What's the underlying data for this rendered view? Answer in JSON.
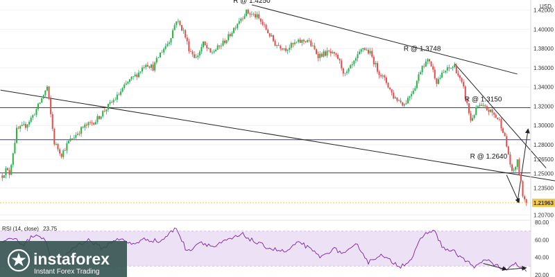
{
  "chart_data": {
    "type": "candlestick",
    "currency_label": "USD",
    "colors": {
      "up": "#26a69a",
      "up_fill": "#2fb53e",
      "down": "#e0524f",
      "resistance_line": "#2b3990",
      "trendline": "#222222",
      "rsi_line": "#7b1fa2",
      "rsi_band": "#ede1f5",
      "last_price_bg": "#f2c94c"
    },
    "price_axis": {
      "min": 1.2015,
      "max": 1.4305,
      "ticks": [
        {
          "value": 1.42,
          "label": "1.42000"
        },
        {
          "value": 1.4,
          "label": "1.40000"
        },
        {
          "value": 1.38,
          "label": "1.38000"
        },
        {
          "value": 1.36,
          "label": "1.36000"
        },
        {
          "value": 1.34,
          "label": "1.34000"
        },
        {
          "value": 1.32,
          "label": "1.32000"
        },
        {
          "value": 1.3,
          "label": "1.30000"
        },
        {
          "value": 1.28,
          "label": "1.28000"
        },
        {
          "value": 1.265,
          "label": "1.26500"
        },
        {
          "value": 1.25,
          "label": "1.25000"
        },
        {
          "value": 1.235,
          "label": "1.23500"
        },
        {
          "value": 1.207,
          "label": "1.20700"
        }
      ],
      "last_price": {
        "value": 1.21963,
        "label": "1.21963"
      }
    },
    "horizontal_levels": [
      1.3185,
      1.2852,
      1.2507
    ],
    "annotations": [
      {
        "text": "R @ 1.4250",
        "bar": 139,
        "price": 1.4275
      },
      {
        "text": "R @ 1.3748",
        "bar": 234,
        "price": 1.3775
      },
      {
        "text": "R @ 1.3150",
        "bar": 268,
        "price": 1.325
      },
      {
        "text": "R @ 1.2640",
        "bar": 271,
        "price": 1.2655
      }
    ],
    "trendlines": [
      {
        "from": {
          "bar": -1,
          "price": 1.3368
        },
        "to": {
          "bar": 320,
          "price": 1.2388
        }
      },
      {
        "from": {
          "bar": 139,
          "price": 1.4255
        },
        "to": {
          "bar": 287,
          "price": 1.3535
        }
      },
      {
        "from": {
          "bar": 252,
          "price": 1.3643
        },
        "to": {
          "bar": 303,
          "price": 1.2558
        }
      },
      {
        "from": {
          "bar": 281,
          "price": 1.2485
        },
        "to": {
          "bar": 288,
          "price": 1.2195
        },
        "arrow": true
      },
      {
        "from": {
          "bar": 287,
          "price": 1.2195
        },
        "to": {
          "bar": 293,
          "price": 1.2965
        },
        "arrow": true
      }
    ],
    "price_waypoints": [
      [
        0,
        1.248
      ],
      [
        2,
        1.254
      ],
      [
        4,
        1.25
      ],
      [
        8,
        1.295
      ],
      [
        13,
        1.3
      ],
      [
        17,
        1.31
      ],
      [
        20,
        1.32
      ],
      [
        25,
        1.34
      ],
      [
        29,
        1.282
      ],
      [
        33,
        1.27
      ],
      [
        37,
        1.283
      ],
      [
        45,
        1.298
      ],
      [
        52,
        1.305
      ],
      [
        58,
        1.318
      ],
      [
        64,
        1.33
      ],
      [
        70,
        1.345
      ],
      [
        76,
        1.355
      ],
      [
        80,
        1.365
      ],
      [
        84,
        1.36
      ],
      [
        88,
        1.375
      ],
      [
        93,
        1.388
      ],
      [
        97,
        1.41
      ],
      [
        101,
        1.398
      ],
      [
        104,
        1.38
      ],
      [
        108,
        1.37
      ],
      [
        112,
        1.385
      ],
      [
        116,
        1.375
      ],
      [
        121,
        1.382
      ],
      [
        126,
        1.392
      ],
      [
        132,
        1.41
      ],
      [
        136,
        1.418
      ],
      [
        142,
        1.413
      ],
      [
        147,
        1.4
      ],
      [
        152,
        1.385
      ],
      [
        158,
        1.38
      ],
      [
        164,
        1.386
      ],
      [
        170,
        1.389
      ],
      [
        176,
        1.373
      ],
      [
        182,
        1.376
      ],
      [
        187,
        1.37
      ],
      [
        191,
        1.352
      ],
      [
        196,
        1.365
      ],
      [
        201,
        1.381
      ],
      [
        205,
        1.375
      ],
      [
        209,
        1.358
      ],
      [
        214,
        1.345
      ],
      [
        218,
        1.33
      ],
      [
        224,
        1.322
      ],
      [
        230,
        1.341
      ],
      [
        234,
        1.363
      ],
      [
        238,
        1.368
      ],
      [
        242,
        1.346
      ],
      [
        247,
        1.357
      ],
      [
        252,
        1.362
      ],
      [
        257,
        1.338
      ],
      [
        261,
        1.305
      ],
      [
        265,
        1.32
      ],
      [
        269,
        1.318
      ],
      [
        273,
        1.313
      ],
      [
        277,
        1.305
      ],
      [
        279,
        1.295
      ],
      [
        282,
        1.27
      ],
      [
        284,
        1.25
      ],
      [
        287,
        1.262
      ],
      [
        290,
        1.228
      ],
      [
        292,
        1.21963
      ]
    ],
    "rsi": {
      "label": "RSI (14, close)",
      "value": 23.75,
      "axis_min": 17.5,
      "axis_max": 82.5,
      "ticks": [
        {
          "value": 80,
          "label": "80.00"
        },
        {
          "value": 60,
          "label": "60.00"
        },
        {
          "value": 40,
          "label": "40.00"
        },
        {
          "value": 20,
          "label": "20.00"
        }
      ],
      "band": [
        30,
        70
      ],
      "arrows": [
        {
          "from": {
            "bar": 268,
            "value": 33
          },
          "to": {
            "bar": 281,
            "value": 26
          }
        },
        {
          "from": {
            "bar": 281,
            "value": 26
          },
          "to": {
            "bar": 292,
            "value": 28
          }
        }
      ],
      "waypoints": [
        [
          0,
          57
        ],
        [
          6,
          62
        ],
        [
          12,
          55
        ],
        [
          18,
          66
        ],
        [
          23,
          63
        ],
        [
          28,
          36
        ],
        [
          33,
          38
        ],
        [
          40,
          52
        ],
        [
          48,
          60
        ],
        [
          56,
          50
        ],
        [
          64,
          62
        ],
        [
          72,
          55
        ],
        [
          80,
          61
        ],
        [
          88,
          58
        ],
        [
          97,
          74
        ],
        [
          103,
          46
        ],
        [
          110,
          58
        ],
        [
          118,
          52
        ],
        [
          126,
          60
        ],
        [
          134,
          66
        ],
        [
          142,
          56
        ],
        [
          150,
          50
        ],
        [
          158,
          46
        ],
        [
          166,
          58
        ],
        [
          172,
          48
        ],
        [
          178,
          40
        ],
        [
          184,
          50
        ],
        [
          191,
          44
        ],
        [
          198,
          55
        ],
        [
          204,
          34
        ],
        [
          210,
          43
        ],
        [
          216,
          36
        ],
        [
          222,
          30
        ],
        [
          228,
          38
        ],
        [
          234,
          64
        ],
        [
          240,
          72
        ],
        [
          246,
          50
        ],
        [
          252,
          46
        ],
        [
          258,
          36
        ],
        [
          264,
          29
        ],
        [
          270,
          38
        ],
        [
          276,
          30
        ],
        [
          281,
          25
        ],
        [
          286,
          33
        ],
        [
          290,
          26
        ],
        [
          292,
          23.75
        ]
      ]
    }
  },
  "logo": {
    "icon_name": "instaforex-star-logo-icon",
    "name": "instaforex",
    "tagline": "Instant Forex Trading"
  }
}
